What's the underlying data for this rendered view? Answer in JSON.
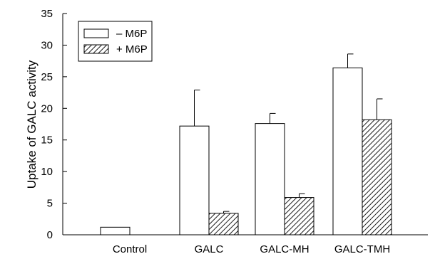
{
  "chart_data": {
    "type": "bar",
    "title": "",
    "xlabel": "",
    "ylabel": "Uptake of GALC activity",
    "ylim": [
      0,
      35
    ],
    "yticks": [
      0,
      5,
      10,
      15,
      20,
      25,
      30,
      35
    ],
    "categories": [
      "Control",
      "GALC",
      "GALC-MH",
      "GALC-TMH"
    ],
    "series": [
      {
        "name": "– M6P",
        "fill": "open",
        "values": [
          1.2,
          17.2,
          17.6,
          26.4
        ],
        "errors": [
          null,
          5.7,
          1.6,
          2.2
        ]
      },
      {
        "name": "+ M6P",
        "fill": "hatched",
        "values": [
          null,
          3.4,
          5.9,
          18.2
        ],
        "errors": [
          null,
          0.3,
          0.6,
          3.3
        ]
      }
    ],
    "legend_position": "top-left",
    "grid": false,
    "colors": {
      "stroke": "#000000",
      "background": "#ffffff"
    }
  }
}
